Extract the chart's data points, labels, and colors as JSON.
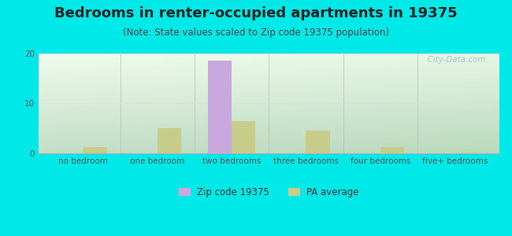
{
  "title": "Bedrooms in renter-occupied apartments in 19375",
  "subtitle": "(Note: State values scaled to Zip code 19375 population)",
  "categories": [
    "no bedroom",
    "one bedroom",
    "two bedrooms",
    "three bedrooms",
    "four bedrooms",
    "five+ bedrooms"
  ],
  "zip_values": [
    0,
    0,
    18.5,
    0,
    0,
    0
  ],
  "pa_values": [
    1.2,
    5.0,
    6.5,
    4.5,
    1.2,
    0.2
  ],
  "zip_color": "#c9a8e0",
  "pa_color": "#c8cc8a",
  "bg_color": "#00e8e8",
  "ylim": [
    0,
    20
  ],
  "yticks": [
    0,
    10,
    20
  ],
  "bar_width": 0.32,
  "title_fontsize": 13,
  "subtitle_fontsize": 8.5,
  "tick_fontsize": 7.5,
  "legend_fontsize": 8.5,
  "watermark": "  City-Data.com",
  "grid_color": "#dddddd",
  "tick_color": "#555555"
}
